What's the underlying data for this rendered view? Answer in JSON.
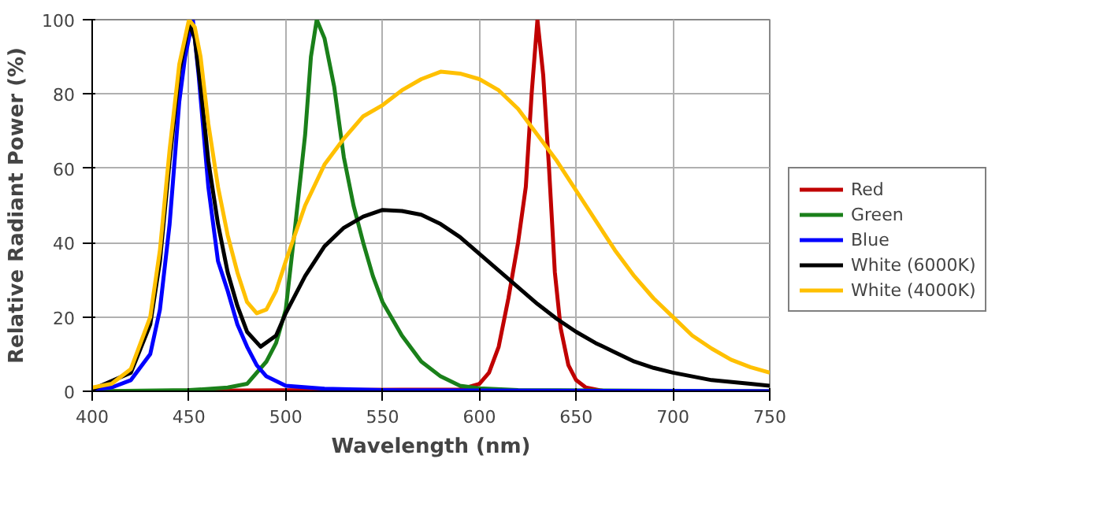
{
  "chart_data": {
    "type": "line",
    "xlabel": "Wavelength (nm)",
    "ylabel": "Relative Radiant Power (%)",
    "xlim": [
      400,
      750
    ],
    "ylim": [
      0,
      100
    ],
    "xticks": [
      400,
      450,
      500,
      550,
      600,
      650,
      700,
      750
    ],
    "yticks": [
      0,
      20,
      40,
      60,
      80,
      100
    ],
    "grid": true,
    "legend": "right",
    "line_style": "solid",
    "series": [
      {
        "name": "Red",
        "color": "#c00000",
        "x": [
          400,
          590,
          600,
          605,
          610,
          615,
          620,
          624,
          627,
          630,
          633,
          636,
          639,
          642,
          646,
          650,
          655,
          665,
          750
        ],
        "values": [
          0,
          0.5,
          2,
          5,
          12,
          25,
          40,
          55,
          80,
          100,
          85,
          60,
          32,
          17,
          7,
          3,
          1,
          0,
          0
        ]
      },
      {
        "name": "Green",
        "color": "#1a801a",
        "x": [
          400,
          450,
          470,
          480,
          490,
          495,
          500,
          505,
          510,
          513,
          516,
          520,
          525,
          530,
          535,
          540,
          545,
          550,
          560,
          570,
          580,
          590,
          600,
          620,
          750
        ],
        "values": [
          0,
          0.3,
          1,
          2,
          8,
          13,
          22,
          45,
          69,
          90,
          100,
          95,
          82,
          63,
          50,
          40,
          31,
          24,
          15,
          8,
          4,
          1.5,
          0.8,
          0.3,
          0
        ]
      },
      {
        "name": "Blue",
        "color": "#0000ff",
        "x": [
          400,
          410,
          420,
          430,
          435,
          440,
          445,
          448,
          452,
          455,
          460,
          465,
          470,
          475,
          480,
          485,
          490,
          500,
          520,
          550,
          600,
          750
        ],
        "values": [
          0.5,
          1,
          3,
          10,
          22,
          45,
          78,
          90,
          100,
          85,
          55,
          35,
          27,
          18,
          12,
          7,
          4,
          1.5,
          0.7,
          0.3,
          0.2,
          0
        ]
      },
      {
        "name": "White (6000K)",
        "color": "#000000",
        "x": [
          400,
          420,
          430,
          435,
          440,
          445,
          450,
          453,
          456,
          460,
          465,
          470,
          475,
          480,
          487,
          495,
          500,
          510,
          520,
          530,
          540,
          550,
          560,
          570,
          580,
          590,
          600,
          610,
          620,
          630,
          640,
          650,
          660,
          670,
          680,
          690,
          700,
          720,
          740,
          750
        ],
        "values": [
          0.5,
          5,
          18,
          35,
          62,
          86,
          99,
          95,
          82,
          62,
          45,
          32,
          23,
          16,
          12,
          15,
          21,
          31,
          39,
          44,
          47,
          48.8,
          48.5,
          47.5,
          45,
          41.5,
          37,
          32.5,
          28,
          23.5,
          19.5,
          16,
          13,
          10.5,
          8,
          6.3,
          5,
          3,
          2,
          1.5
        ]
      },
      {
        "name": "White (4000K)",
        "color": "#ffc000",
        "x": [
          400,
          410,
          420,
          430,
          435,
          440,
          445,
          450,
          453,
          456,
          460,
          465,
          470,
          475,
          480,
          485,
          490,
          495,
          500,
          510,
          520,
          530,
          540,
          550,
          560,
          570,
          580,
          590,
          600,
          610,
          620,
          630,
          640,
          650,
          660,
          670,
          680,
          690,
          700,
          710,
          720,
          730,
          740,
          750
        ],
        "values": [
          1,
          2,
          6,
          20,
          38,
          65,
          88,
          100,
          98,
          90,
          72,
          55,
          42,
          32,
          24,
          21,
          22,
          27,
          35,
          50,
          61,
          68,
          74,
          77,
          81,
          84,
          86,
          85.5,
          84,
          81,
          76,
          69,
          62,
          54,
          46,
          38,
          31,
          25,
          20,
          15,
          11.5,
          8.5,
          6.5,
          5
        ]
      }
    ]
  }
}
